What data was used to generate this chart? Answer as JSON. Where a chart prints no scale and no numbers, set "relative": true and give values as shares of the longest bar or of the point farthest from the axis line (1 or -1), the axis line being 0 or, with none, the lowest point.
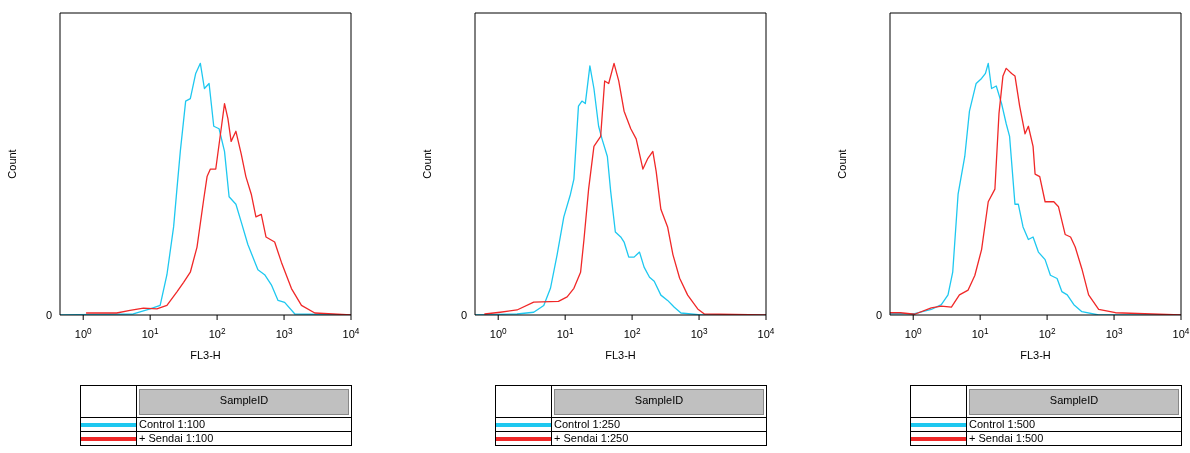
{
  "chart_data": [
    {
      "type": "line",
      "xlabel": "FL3-H",
      "ylabel": "Count",
      "legend": "bottom",
      "legend_title": "SampleID",
      "relative": true,
      "log": "x",
      "xlim": [
        0.45,
        10000
      ],
      "xticks": [
        {
          "value": 1,
          "label": "10$^{0}$"
        },
        {
          "value": 10,
          "label": "10$^{1}$"
        },
        {
          "value": 100,
          "label": "10$^{2}$"
        },
        {
          "value": 1000,
          "label": "10$^{3}$"
        },
        {
          "value": 10000,
          "label": "10$^{4}$"
        }
      ],
      "annotations": [
        "0"
      ],
      "series": [
        {
          "name": "Control 1:100",
          "color": "#1ec8f0",
          "x": [
            0.45,
            5.6,
            10,
            14.1,
            17.8,
            22.4,
            25.1,
            28.2,
            33.9,
            39.8,
            47.9,
            56.2,
            64.6,
            75.9,
            89.1,
            107,
            129,
            151,
            191,
            229,
            288,
            407,
            513,
            646,
            813,
            1020,
            1450,
            10000
          ],
          "values": [
            0,
            0.004,
            0.024,
            0.038,
            0.16,
            0.35,
            0.5,
            0.65,
            0.85,
            0.86,
            0.96,
            1,
            0.9,
            0.92,
            0.75,
            0.74,
            0.65,
            0.47,
            0.44,
            0.37,
            0.28,
            0.18,
            0.16,
            0.12,
            0.058,
            0.05,
            0.004,
            0
          ]
        },
        {
          "name": "+ Sendai 1:100",
          "color": "#f02828",
          "x": [
            1.12,
            3.16,
            5.01,
            7.94,
            12.6,
            17.8,
            25.1,
            31.6,
            39.8,
            50.1,
            63.1,
            70.8,
            79.4,
            95.5,
            115,
            129,
            145,
            162,
            191,
            229,
            269,
            324,
            380,
            457,
            537,
            724,
            912,
            1290,
            1820,
            2880,
            10000
          ],
          "values": [
            0.008,
            0.008,
            0.018,
            0.027,
            0.024,
            0.038,
            0.092,
            0.13,
            0.17,
            0.27,
            0.46,
            0.55,
            0.58,
            0.58,
            0.74,
            0.84,
            0.78,
            0.69,
            0.73,
            0.64,
            0.55,
            0.48,
            0.39,
            0.4,
            0.31,
            0.29,
            0.21,
            0.105,
            0.038,
            0.008,
            0
          ]
        }
      ]
    },
    {
      "type": "line",
      "xlabel": "FL3-H",
      "ylabel": "Count",
      "legend": "bottom",
      "legend_title": "SampleID",
      "relative": true,
      "log": "x",
      "xlim": [
        0.45,
        10000
      ],
      "xticks": [
        {
          "value": 1,
          "label": "10$^{0}$"
        },
        {
          "value": 10,
          "label": "10$^{1}$"
        },
        {
          "value": 100,
          "label": "10$^{2}$"
        },
        {
          "value": 1000,
          "label": "10$^{3}$"
        },
        {
          "value": 10000,
          "label": "10$^{4}$"
        }
      ],
      "annotations": [
        "0"
      ],
      "series": [
        {
          "name": "Control 1:250",
          "color": "#1ec8f0",
          "x": [
            0.45,
            1.91,
            3.39,
            4.79,
            6.03,
            7.59,
            9.55,
            12,
            13.5,
            15.8,
            17.8,
            20,
            23.4,
            26.9,
            31.6,
            35.5,
            42.7,
            47.9,
            56.2,
            67.6,
            75.9,
            89.1,
            107,
            129,
            151,
            182,
            214,
            269,
            339,
            427,
            537,
            1070,
            10000
          ],
          "values": [
            0,
            0.004,
            0.011,
            0.038,
            0.106,
            0.24,
            0.39,
            0.48,
            0.54,
            0.83,
            0.85,
            0.84,
            0.99,
            0.9,
            0.75,
            0.7,
            0.63,
            0.49,
            0.33,
            0.31,
            0.29,
            0.23,
            0.23,
            0.25,
            0.19,
            0.15,
            0.134,
            0.079,
            0.058,
            0.031,
            0.008,
            0,
            0
          ]
        },
        {
          "name": "+ Sendai 1:250",
          "color": "#f02828",
          "x": [
            0.631,
            1.07,
            1.91,
            3.39,
            7.94,
            10.7,
            13.5,
            17,
            19.1,
            22.4,
            26.9,
            33.9,
            38.9,
            44.7,
            53.7,
            63.1,
            75.9,
            95.5,
            115,
            145,
            170,
            204,
            229,
            269,
            339,
            407,
            513,
            676,
            955,
            1200,
            10000
          ],
          "values": [
            0.004,
            0.011,
            0.02,
            0.051,
            0.054,
            0.072,
            0.106,
            0.17,
            0.3,
            0.5,
            0.67,
            0.71,
            0.93,
            0.92,
            1,
            0.93,
            0.81,
            0.74,
            0.7,
            0.58,
            0.62,
            0.65,
            0.57,
            0.42,
            0.35,
            0.24,
            0.146,
            0.079,
            0.024,
            0.004,
            0
          ]
        }
      ]
    },
    {
      "type": "line",
      "xlabel": "FL3-H",
      "ylabel": "Count",
      "legend": "bottom",
      "legend_title": "SampleID",
      "relative": true,
      "log": "x",
      "xlim": [
        0.45,
        10000
      ],
      "xticks": [
        {
          "value": 1,
          "label": "10$^{0}$"
        },
        {
          "value": 10,
          "label": "10$^{1}$"
        },
        {
          "value": 100,
          "label": "10$^{2}$"
        },
        {
          "value": 1000,
          "label": "10$^{3}$"
        },
        {
          "value": 10000,
          "label": "10$^{4}$"
        }
      ],
      "annotations": [
        "0"
      ],
      "series": [
        {
          "name": "Control 1:500",
          "color": "#1ec8f0",
          "x": [
            0.457,
            1.05,
            1.86,
            2.63,
            3.31,
            3.89,
            4.68,
            5.89,
            6.92,
            8.71,
            10.5,
            12,
            13.2,
            14.8,
            17.4,
            20.9,
            24.5,
            27.5,
            33.1,
            37.2,
            43.7,
            52.5,
            61.7,
            74.1,
            93.3,
            112,
            141,
            166,
            200,
            251,
            331,
            589,
            10000
          ],
          "values": [
            0.005,
            0.005,
            0.022,
            0.041,
            0.08,
            0.17,
            0.48,
            0.63,
            0.81,
            0.92,
            0.94,
            0.96,
            1,
            0.9,
            0.91,
            0.84,
            0.76,
            0.71,
            0.44,
            0.44,
            0.35,
            0.3,
            0.31,
            0.25,
            0.22,
            0.158,
            0.145,
            0.093,
            0.08,
            0.041,
            0.013,
            0,
            0
          ]
        },
        {
          "name": "+ Sendai 1:500",
          "color": "#f02828",
          "x": [
            0.457,
            0.646,
            1.05,
            1.86,
            2.63,
            3.72,
            4.9,
            6.61,
            8.32,
            10.5,
            13.2,
            16.6,
            19.1,
            21.9,
            24.5,
            29.5,
            33.1,
            38.9,
            46.8,
            52.5,
            61.7,
            66.1,
            77.6,
            93.3,
            126,
            148,
            186,
            224,
            263,
            331,
            417,
            589,
            1050,
            10000
          ],
          "values": [
            0.009,
            0.009,
            0.003,
            0.028,
            0.035,
            0.031,
            0.08,
            0.099,
            0.157,
            0.26,
            0.45,
            0.5,
            0.8,
            0.95,
            0.98,
            0.96,
            0.95,
            0.83,
            0.72,
            0.75,
            0.67,
            0.56,
            0.55,
            0.45,
            0.45,
            0.43,
            0.32,
            0.31,
            0.27,
            0.183,
            0.08,
            0.022,
            0.009,
            0
          ]
        }
      ]
    }
  ]
}
